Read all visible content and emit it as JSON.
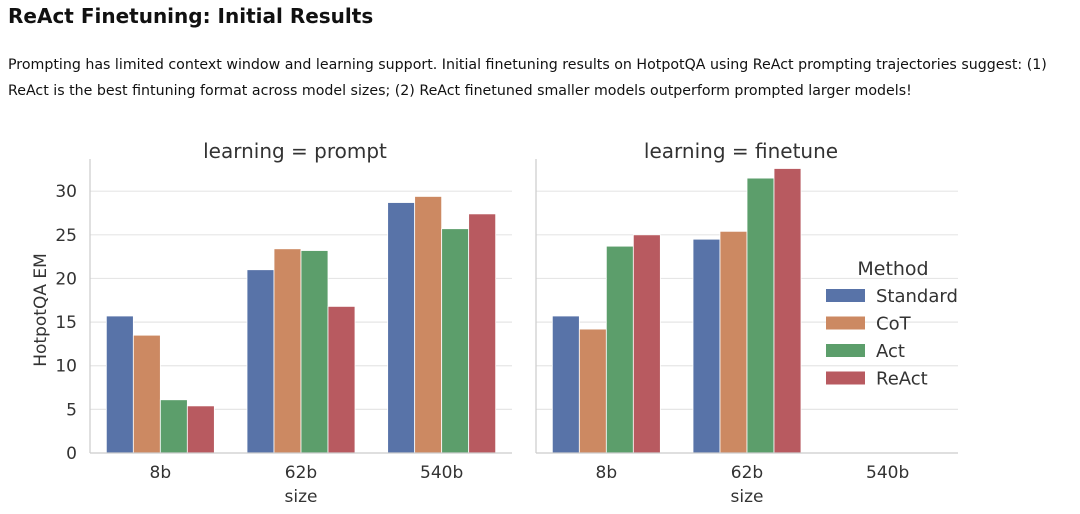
{
  "page": {
    "title": "ReAct Finetuning: Initial Results",
    "intro": "Prompting has limited context window and learning support. Initial finetuning results on HotpotQA using ReAct prompting trajectories suggest: (1) ReAct is the best fintuning format across model sizes; (2) ReAct finetuned smaller models outperform prompted larger models!"
  },
  "chart_data": {
    "type": "bar",
    "ylabel": "HotpotQA EM",
    "xlabel": "size",
    "ylim": [
      0,
      33
    ],
    "yticks": [
      0,
      5,
      10,
      15,
      20,
      25,
      30
    ],
    "grid": true,
    "categories": [
      "8b",
      "62b",
      "540b"
    ],
    "legend": {
      "title": "Method",
      "placement": "right"
    },
    "colors": {
      "Standard": "#5873a8",
      "CoT": "#cc8962",
      "Act": "#5c9e6b",
      "ReAct": "#b85a60"
    },
    "panels": [
      {
        "title": "learning = prompt",
        "series": [
          {
            "name": "Standard",
            "values": [
              15.7,
              21.0,
              28.7
            ]
          },
          {
            "name": "CoT",
            "values": [
              13.5,
              23.4,
              29.4
            ]
          },
          {
            "name": "Act",
            "values": [
              6.1,
              23.2,
              25.7
            ]
          },
          {
            "name": "ReAct",
            "values": [
              5.4,
              16.8,
              27.4
            ]
          }
        ]
      },
      {
        "title": "learning = finetune",
        "series": [
          {
            "name": "Standard",
            "values": [
              15.7,
              24.5,
              null
            ]
          },
          {
            "name": "CoT",
            "values": [
              14.2,
              25.4,
              null
            ]
          },
          {
            "name": "Act",
            "values": [
              23.7,
              31.5,
              null
            ]
          },
          {
            "name": "ReAct",
            "values": [
              25.0,
              32.6,
              null
            ]
          }
        ]
      }
    ]
  }
}
